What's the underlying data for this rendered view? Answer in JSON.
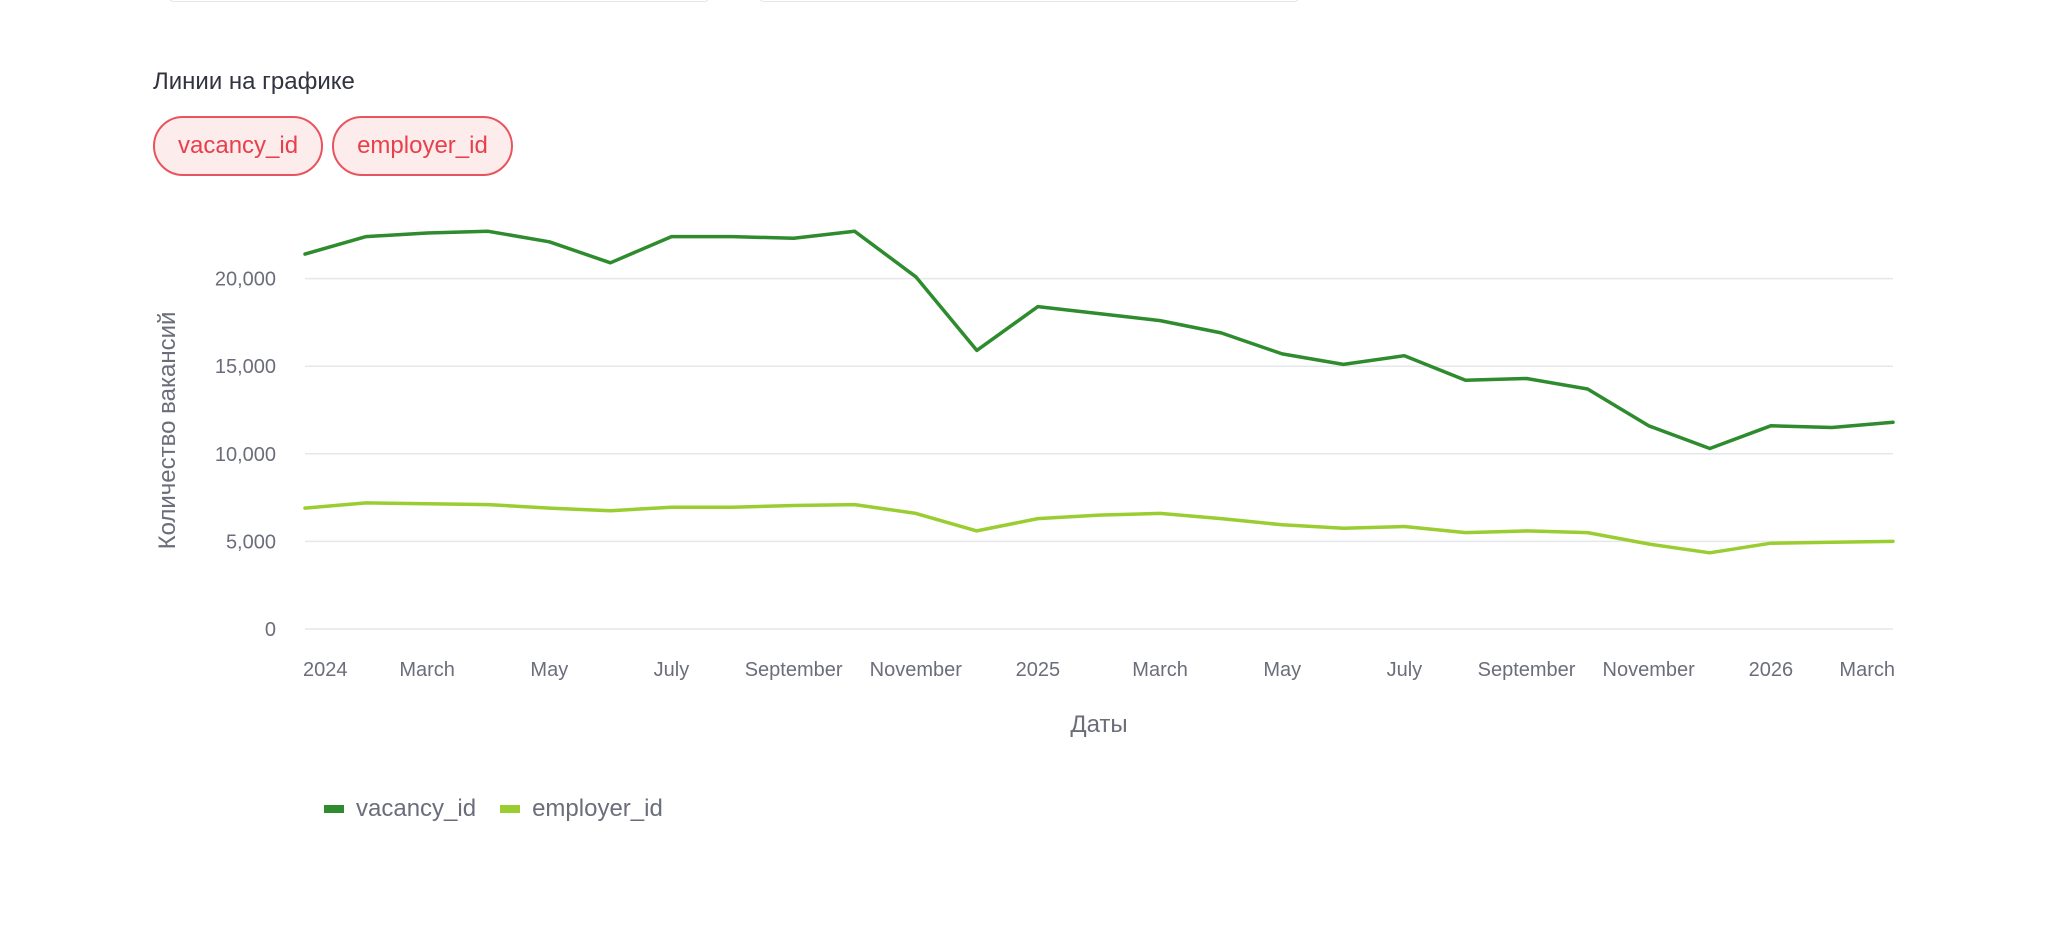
{
  "controls": {
    "section_label": "Линии на графике",
    "pills": [
      "vacancy_id",
      "employer_id"
    ]
  },
  "colors": {
    "vacancy_id": "#2e8b2e",
    "employer_id": "#9acd32",
    "pill_border": "#e8545d",
    "pill_bg": "#fdecec",
    "pill_text": "#e8404b",
    "grid": "#e6e7ea",
    "axis_text": "#6b6e7a"
  },
  "chart_data": {
    "type": "line",
    "xlabel": "Даты",
    "ylabel": "Количество вакансий",
    "ylim": [
      0,
      23000
    ],
    "yticks": [
      0,
      5000,
      10000,
      15000,
      20000
    ],
    "ytick_labels": [
      "0",
      "5,000",
      "10,000",
      "15,000",
      "20,000"
    ],
    "x_start": "2024-01",
    "x": [
      "2024-01",
      "2024-02",
      "2024-03",
      "2024-04",
      "2024-05",
      "2024-06",
      "2024-07",
      "2024-08",
      "2024-09",
      "2024-10",
      "2024-11",
      "2024-12",
      "2025-01",
      "2025-02",
      "2025-03",
      "2025-04",
      "2025-05",
      "2025-06",
      "2025-07",
      "2025-08",
      "2025-09",
      "2025-10",
      "2025-11",
      "2025-12",
      "2026-01",
      "2026-02",
      "2026-03"
    ],
    "xtick_positions": [
      "2024-01",
      "2024-03",
      "2024-05",
      "2024-07",
      "2024-09",
      "2024-11",
      "2025-01",
      "2025-03",
      "2025-05",
      "2025-07",
      "2025-09",
      "2025-11",
      "2026-01",
      "2026-03"
    ],
    "xtick_labels": [
      "2024",
      "March",
      "May",
      "July",
      "September",
      "November",
      "2025",
      "March",
      "May",
      "July",
      "September",
      "November",
      "2026",
      "March"
    ],
    "series": [
      {
        "name": "vacancy_id",
        "color": "#2e8b2e",
        "values": [
          21400,
          22400,
          22600,
          22700,
          22100,
          20900,
          22400,
          22400,
          22300,
          22700,
          20100,
          15900,
          18400,
          18000,
          17600,
          16900,
          15700,
          15100,
          15600,
          14200,
          14300,
          13700,
          11600,
          10300,
          11600,
          11500,
          11800
        ]
      },
      {
        "name": "employer_id",
        "color": "#9acd32",
        "values": [
          6900,
          7200,
          7150,
          7100,
          6900,
          6750,
          6950,
          6950,
          7050,
          7100,
          6600,
          5600,
          6300,
          6500,
          6600,
          6300,
          5950,
          5750,
          5850,
          5500,
          5600,
          5500,
          4850,
          4350,
          4900,
          4950,
          5000
        ]
      }
    ],
    "legend_position": "bottom-left",
    "grid": true
  }
}
